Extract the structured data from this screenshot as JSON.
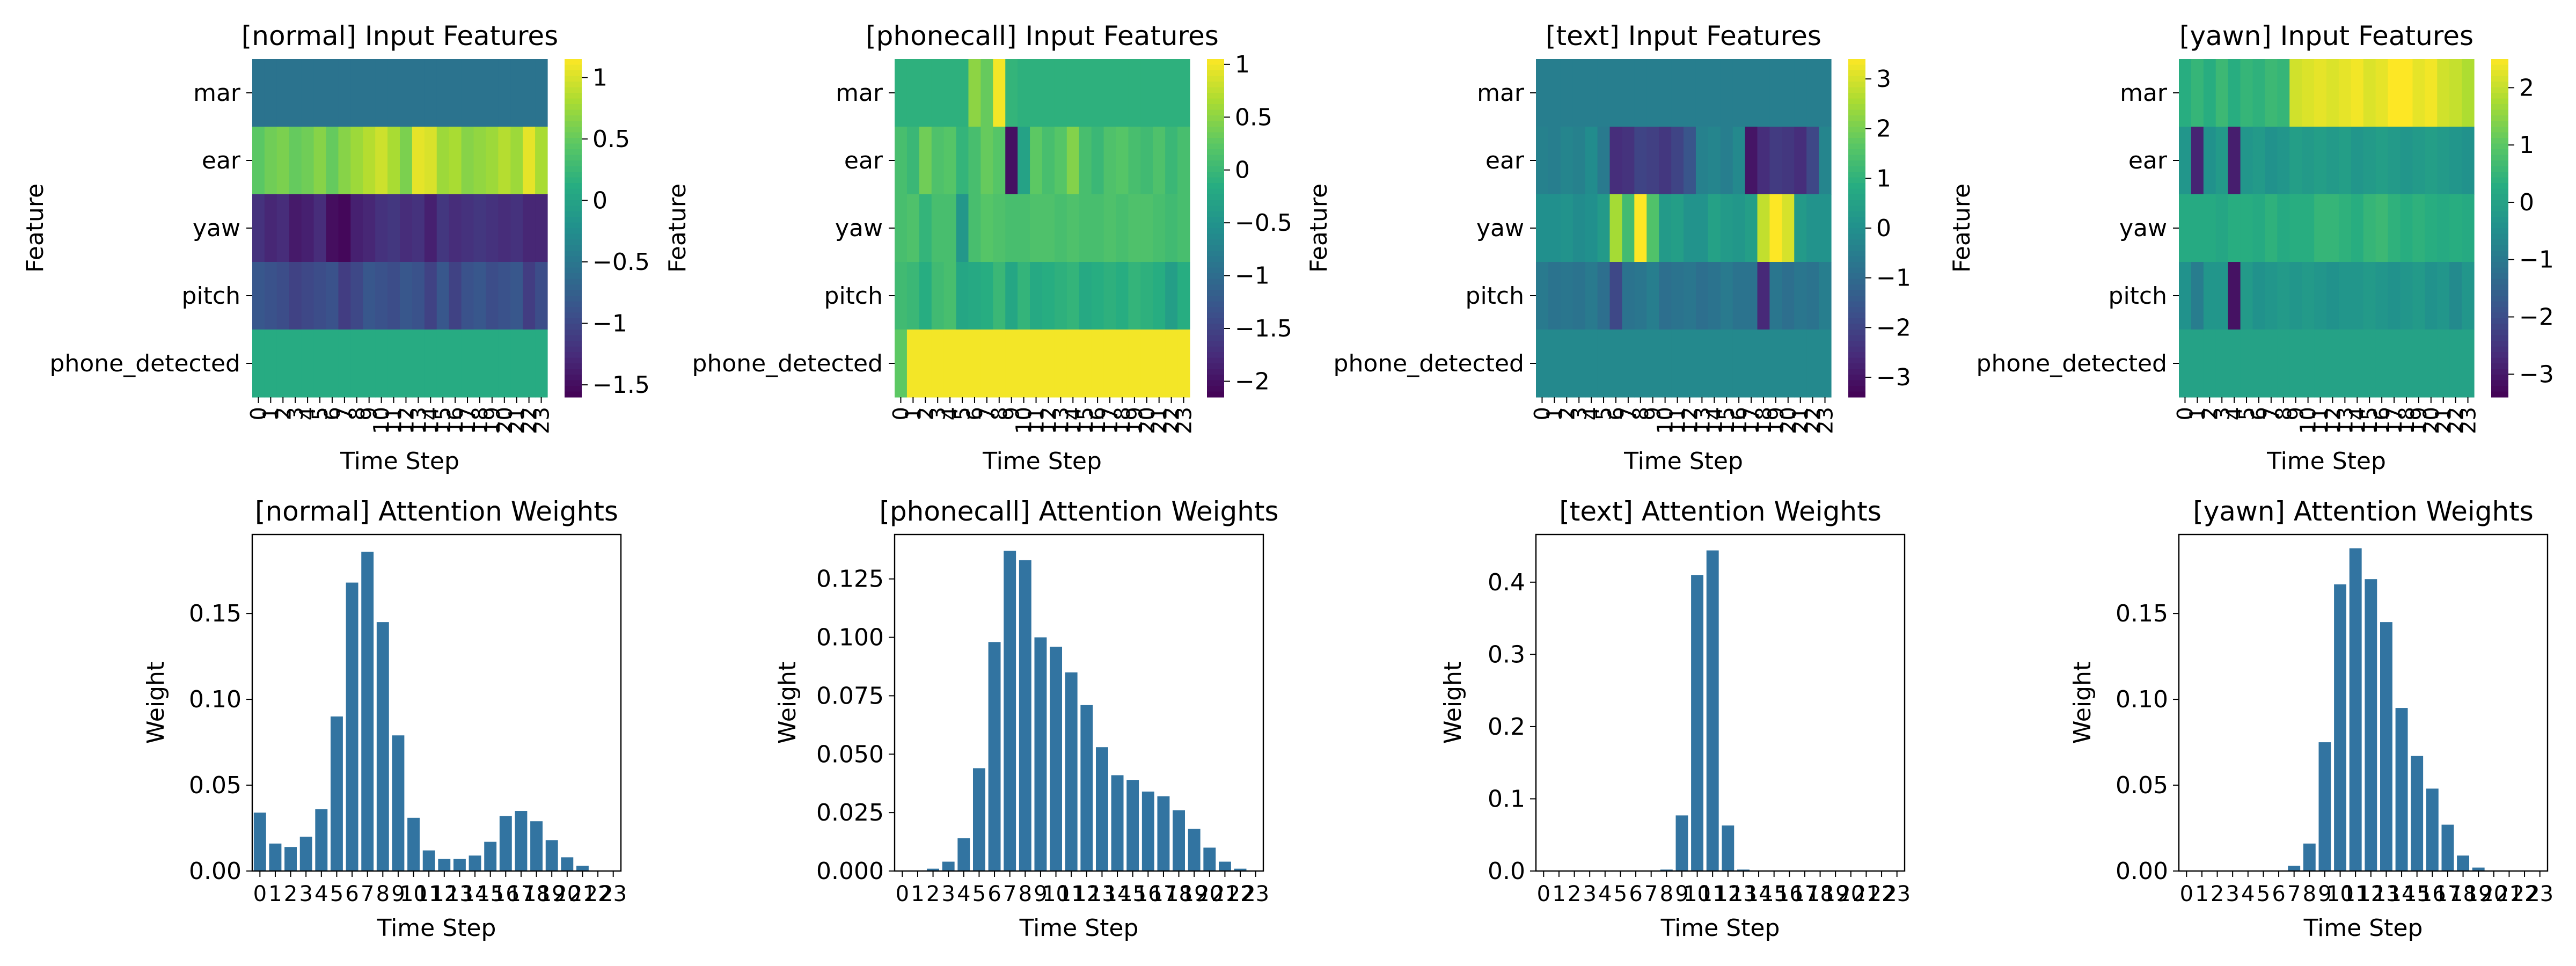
{
  "chart_data": [
    {
      "type": "heatmap",
      "title": "[normal] Input Features",
      "xlabel": "Time Step",
      "ylabel": "Feature",
      "rows": [
        "mar",
        "ear",
        "yaw",
        "pitch",
        "phone_detected"
      ],
      "x": [
        "0",
        "1",
        "2",
        "3",
        "4",
        "5",
        "6",
        "7",
        "8",
        "9",
        "10",
        "11",
        "12",
        "13",
        "14",
        "15",
        "16",
        "17",
        "18",
        "19",
        "20",
        "21",
        "22",
        "23"
      ],
      "colorbar_ticks": [
        1.0,
        0.5,
        0.0,
        -0.5,
        -1.0,
        -1.5
      ],
      "vmin": -1.6,
      "vmax": 1.15,
      "colormap": "viridis",
      "values": [
        [
          -0.55,
          -0.55,
          -0.55,
          -0.55,
          -0.55,
          -0.55,
          -0.55,
          -0.55,
          -0.55,
          -0.55,
          -0.55,
          -0.55,
          -0.55,
          -0.55,
          -0.55,
          -0.55,
          -0.55,
          -0.55,
          -0.55,
          -0.55,
          -0.55,
          -0.55,
          -0.55,
          -0.55
        ],
        [
          0.45,
          0.55,
          0.6,
          0.5,
          0.55,
          0.65,
          0.5,
          0.65,
          0.75,
          0.85,
          0.95,
          0.8,
          0.6,
          1.05,
          1.0,
          0.75,
          0.8,
          0.65,
          0.7,
          0.75,
          0.85,
          0.75,
          1.05,
          0.8
        ],
        [
          -1.2,
          -1.3,
          -1.25,
          -1.4,
          -1.35,
          -1.25,
          -1.5,
          -1.55,
          -1.35,
          -1.3,
          -1.2,
          -1.15,
          -1.25,
          -1.2,
          -1.35,
          -1.15,
          -1.25,
          -1.2,
          -1.15,
          -1.2,
          -1.25,
          -1.2,
          -1.3,
          -1.3
        ],
        [
          -0.85,
          -0.9,
          -0.95,
          -1.05,
          -1.0,
          -0.95,
          -0.9,
          -1.1,
          -1.0,
          -0.85,
          -0.9,
          -0.95,
          -0.85,
          -0.9,
          -1.05,
          -0.85,
          -1.05,
          -0.9,
          -0.85,
          -0.95,
          -0.9,
          -0.85,
          -1.1,
          -0.95
        ],
        [
          0.1,
          0.1,
          0.1,
          0.1,
          0.1,
          0.1,
          0.1,
          0.1,
          0.1,
          0.1,
          0.1,
          0.1,
          0.1,
          0.1,
          0.1,
          0.1,
          0.1,
          0.1,
          0.1,
          0.1,
          0.1,
          0.1,
          0.1,
          0.1
        ]
      ]
    },
    {
      "type": "heatmap",
      "title": "[phonecall] Input Features",
      "xlabel": "Time Step",
      "ylabel": "Feature",
      "rows": [
        "mar",
        "ear",
        "yaw",
        "pitch",
        "phone_detected"
      ],
      "x": [
        "0",
        "1",
        "2",
        "3",
        "4",
        "5",
        "6",
        "7",
        "8",
        "9",
        "10",
        "11",
        "12",
        "13",
        "14",
        "15",
        "16",
        "17",
        "18",
        "19",
        "20",
        "21",
        "22",
        "23"
      ],
      "colorbar_ticks": [
        1.0,
        0.5,
        0.0,
        -0.5,
        -1.0,
        -1.5,
        -2.0
      ],
      "vmin": -2.15,
      "vmax": 1.05,
      "colormap": "viridis",
      "values": [
        [
          -0.1,
          -0.1,
          -0.1,
          -0.1,
          -0.1,
          -0.1,
          0.5,
          0.3,
          1.0,
          -0.05,
          -0.1,
          -0.1,
          -0.1,
          -0.1,
          -0.1,
          -0.1,
          -0.1,
          -0.1,
          -0.1,
          -0.1,
          -0.1,
          -0.1,
          -0.1,
          -0.1
        ],
        [
          0.1,
          0.0,
          0.35,
          0.15,
          0.2,
          -0.05,
          0.1,
          0.3,
          0.2,
          -2.0,
          -0.3,
          0.25,
          0.1,
          0.2,
          0.45,
          0.1,
          0.0,
          0.15,
          0.2,
          0.1,
          0.05,
          0.15,
          0.0,
          0.1
        ],
        [
          0.1,
          0.15,
          -0.05,
          0.1,
          0.1,
          -0.45,
          0.1,
          0.2,
          0.15,
          0.1,
          0.1,
          0.15,
          0.15,
          0.1,
          0.15,
          0.1,
          0.1,
          0.15,
          0.1,
          0.15,
          0.15,
          0.1,
          0.05,
          0.1
        ],
        [
          0.05,
          0.0,
          -0.15,
          0.05,
          0.1,
          -0.25,
          -0.2,
          -0.15,
          0.0,
          -0.25,
          -0.05,
          -0.2,
          -0.15,
          -0.1,
          -0.05,
          -0.2,
          -0.15,
          -0.1,
          -0.15,
          -0.05,
          -0.1,
          -0.15,
          -0.35,
          -0.15
        ],
        [
          0.25,
          1.0,
          1.0,
          1.0,
          1.0,
          1.0,
          1.0,
          1.0,
          1.0,
          1.0,
          1.0,
          1.0,
          1.0,
          1.0,
          1.0,
          1.0,
          1.0,
          1.0,
          1.0,
          1.0,
          1.0,
          1.0,
          1.0,
          1.0
        ]
      ]
    },
    {
      "type": "heatmap",
      "title": "[text] Input Features",
      "xlabel": "Time Step",
      "ylabel": "Feature",
      "rows": [
        "mar",
        "ear",
        "yaw",
        "pitch",
        "phone_detected"
      ],
      "x": [
        "0",
        "1",
        "2",
        "3",
        "4",
        "5",
        "6",
        "7",
        "8",
        "9",
        "10",
        "11",
        "12",
        "13",
        "14",
        "15",
        "16",
        "17",
        "18",
        "19",
        "20",
        "21",
        "22",
        "23"
      ],
      "colorbar_ticks": [
        3,
        2,
        1,
        0,
        -1,
        -2,
        -3
      ],
      "vmin": -3.4,
      "vmax": 3.4,
      "colormap": "viridis",
      "values": [
        [
          -0.5,
          -0.5,
          -0.5,
          -0.5,
          -0.5,
          -0.5,
          -0.5,
          -0.5,
          -0.5,
          -0.5,
          -0.5,
          -0.5,
          -0.5,
          -0.5,
          -0.5,
          -0.5,
          -0.5,
          -0.5,
          -0.5,
          -0.5,
          -0.5,
          -0.5,
          -0.5,
          -0.5
        ],
        [
          -0.4,
          -0.5,
          -0.3,
          -0.4,
          -0.1,
          -0.6,
          -2.5,
          -2.4,
          -2.0,
          -2.1,
          -2.3,
          -2.0,
          -1.6,
          -0.4,
          -0.3,
          -0.5,
          -0.2,
          -3.0,
          -2.5,
          -2.2,
          -2.3,
          -2.5,
          -1.9,
          -0.3
        ],
        [
          0.0,
          0.0,
          0.1,
          -0.1,
          0.0,
          0.3,
          2.5,
          1.3,
          3.4,
          1.5,
          0.3,
          0.4,
          0.1,
          0.1,
          0.5,
          0.3,
          0.2,
          0.4,
          2.8,
          3.4,
          3.0,
          0.3,
          0.1,
          0.1
        ],
        [
          -0.6,
          -0.8,
          -0.7,
          -0.8,
          -0.6,
          -0.9,
          -1.9,
          -0.8,
          -0.7,
          -0.5,
          -0.9,
          -0.8,
          -0.7,
          -0.9,
          -0.8,
          -0.6,
          -0.8,
          -0.8,
          -2.6,
          -0.7,
          -0.9,
          -0.7,
          -0.8,
          -0.5
        ],
        [
          -0.2,
          -0.2,
          -0.2,
          -0.2,
          -0.2,
          -0.2,
          -0.2,
          -0.2,
          -0.2,
          -0.2,
          -0.2,
          -0.2,
          -0.2,
          -0.2,
          -0.2,
          -0.2,
          -0.2,
          -0.2,
          -0.2,
          -0.2,
          -0.2,
          -0.2,
          -0.2,
          -0.2
        ]
      ]
    },
    {
      "type": "heatmap",
      "title": "[yawn] Input Features",
      "xlabel": "Time Step",
      "ylabel": "Feature",
      "rows": [
        "mar",
        "ear",
        "yaw",
        "pitch",
        "phone_detected"
      ],
      "x": [
        "0",
        "1",
        "2",
        "3",
        "4",
        "5",
        "6",
        "7",
        "8",
        "9",
        "10",
        "11",
        "12",
        "13",
        "14",
        "15",
        "16",
        "17",
        "18",
        "19",
        "20",
        "21",
        "22",
        "23"
      ],
      "colorbar_ticks": [
        2,
        1,
        0,
        -1,
        -2,
        -3
      ],
      "vmin": -3.4,
      "vmax": 2.5,
      "colormap": "viridis",
      "values": [
        [
          0.3,
          0.5,
          0.3,
          0.6,
          0.3,
          0.5,
          0.4,
          0.6,
          0.5,
          2.1,
          2.2,
          2.3,
          2.2,
          2.3,
          2.4,
          2.2,
          2.3,
          2.5,
          2.5,
          2.3,
          2.4,
          2.1,
          2.0,
          1.8
        ],
        [
          -0.3,
          -2.8,
          -0.4,
          -0.2,
          -2.9,
          -0.3,
          -0.2,
          -0.4,
          -0.3,
          -0.1,
          -0.2,
          -0.1,
          -0.2,
          -0.1,
          -0.3,
          -0.2,
          -0.1,
          -0.2,
          -0.3,
          -0.2,
          -0.1,
          -0.2,
          -0.3,
          -0.4
        ],
        [
          0.2,
          0.2,
          0.2,
          0.1,
          0.3,
          0.3,
          0.2,
          0.4,
          0.2,
          0.3,
          0.3,
          0.5,
          0.5,
          0.4,
          0.3,
          0.5,
          0.6,
          0.4,
          0.3,
          0.4,
          0.3,
          0.2,
          0.3,
          0.2
        ],
        [
          -0.4,
          -0.9,
          -0.3,
          -0.3,
          -3.1,
          -0.2,
          -0.4,
          -0.3,
          -0.2,
          -0.3,
          -0.2,
          -0.3,
          -0.4,
          -0.3,
          -0.3,
          -0.2,
          -0.3,
          -0.4,
          -0.3,
          -0.2,
          -0.4,
          -0.3,
          -0.6,
          -0.3
        ],
        [
          0.0,
          0.0,
          0.0,
          0.0,
          0.0,
          0.0,
          0.0,
          0.0,
          0.0,
          0.0,
          0.0,
          0.0,
          0.0,
          0.0,
          0.0,
          0.0,
          0.0,
          0.0,
          0.0,
          0.0,
          0.0,
          0.0,
          0.0,
          0.0
        ]
      ]
    },
    {
      "type": "bar",
      "title": "[normal] Attention Weights",
      "xlabel": "Time Step",
      "ylabel": "Weight",
      "categories": [
        "0",
        "1",
        "2",
        "3",
        "4",
        "5",
        "6",
        "7",
        "8",
        "9",
        "10",
        "11",
        "12",
        "13",
        "14",
        "15",
        "16",
        "17",
        "18",
        "19",
        "20",
        "21",
        "22",
        "23"
      ],
      "values": [
        0.034,
        0.016,
        0.014,
        0.02,
        0.036,
        0.09,
        0.168,
        0.186,
        0.145,
        0.079,
        0.031,
        0.012,
        0.007,
        0.007,
        0.009,
        0.017,
        0.032,
        0.035,
        0.029,
        0.018,
        0.008,
        0.003,
        0.0,
        0.0
      ],
      "yticks": [
        0.0,
        0.05,
        0.1,
        0.15
      ],
      "ytick_labels": [
        "0.00",
        "0.05",
        "0.10",
        "0.15"
      ],
      "ylim": [
        0,
        0.196
      ],
      "color": "#3274a1"
    },
    {
      "type": "bar",
      "title": "[phonecall] Attention Weights",
      "xlabel": "Time Step",
      "ylabel": "Weight",
      "categories": [
        "0",
        "1",
        "2",
        "3",
        "4",
        "5",
        "6",
        "7",
        "8",
        "9",
        "10",
        "11",
        "12",
        "13",
        "14",
        "15",
        "16",
        "17",
        "18",
        "19",
        "20",
        "21",
        "22",
        "23"
      ],
      "values": [
        0.0,
        0.0,
        0.001,
        0.004,
        0.014,
        0.044,
        0.098,
        0.137,
        0.133,
        0.1,
        0.096,
        0.085,
        0.071,
        0.053,
        0.041,
        0.039,
        0.034,
        0.032,
        0.026,
        0.018,
        0.01,
        0.004,
        0.001,
        0.0
      ],
      "yticks": [
        0.0,
        0.025,
        0.05,
        0.075,
        0.1,
        0.125
      ],
      "ytick_labels": [
        "0.000",
        "0.025",
        "0.050",
        "0.075",
        "0.100",
        "0.125"
      ],
      "ylim": [
        0,
        0.144
      ],
      "color": "#3274a1"
    },
    {
      "type": "bar",
      "title": "[text] Attention Weights",
      "xlabel": "Time Step",
      "ylabel": "Weight",
      "categories": [
        "0",
        "1",
        "2",
        "3",
        "4",
        "5",
        "6",
        "7",
        "8",
        "9",
        "10",
        "11",
        "12",
        "13",
        "14",
        "15",
        "16",
        "17",
        "18",
        "19",
        "20",
        "21",
        "22",
        "23"
      ],
      "values": [
        0.0,
        0.0,
        0.0,
        0.0,
        0.0,
        0.0,
        0.0,
        0.0,
        0.002,
        0.077,
        0.41,
        0.444,
        0.063,
        0.002,
        0.0,
        0.0,
        0.0,
        0.0,
        0.0,
        0.0,
        0.0,
        0.0,
        0.0,
        0.0
      ],
      "yticks": [
        0.0,
        0.1,
        0.2,
        0.3,
        0.4
      ],
      "ytick_labels": [
        "0.0",
        "0.1",
        "0.2",
        "0.3",
        "0.4"
      ],
      "ylim": [
        0,
        0.466
      ],
      "color": "#3274a1"
    },
    {
      "type": "bar",
      "title": "[yawn] Attention Weights",
      "xlabel": "Time Step",
      "ylabel": "Weight",
      "categories": [
        "0",
        "1",
        "2",
        "3",
        "4",
        "5",
        "6",
        "7",
        "8",
        "9",
        "10",
        "11",
        "12",
        "13",
        "14",
        "15",
        "16",
        "17",
        "18",
        "19",
        "20",
        "21",
        "22",
        "23"
      ],
      "values": [
        0.0,
        0.0,
        0.0,
        0.0,
        0.0,
        0.0,
        0.0,
        0.003,
        0.016,
        0.075,
        0.167,
        0.188,
        0.17,
        0.145,
        0.095,
        0.067,
        0.048,
        0.027,
        0.009,
        0.002,
        0.0,
        0.0,
        0.0,
        0.0
      ],
      "yticks": [
        0.0,
        0.05,
        0.1,
        0.15
      ],
      "ytick_labels": [
        "0.00",
        "0.05",
        "0.10",
        "0.15"
      ],
      "ylim": [
        0,
        0.196
      ],
      "color": "#3274a1"
    }
  ]
}
